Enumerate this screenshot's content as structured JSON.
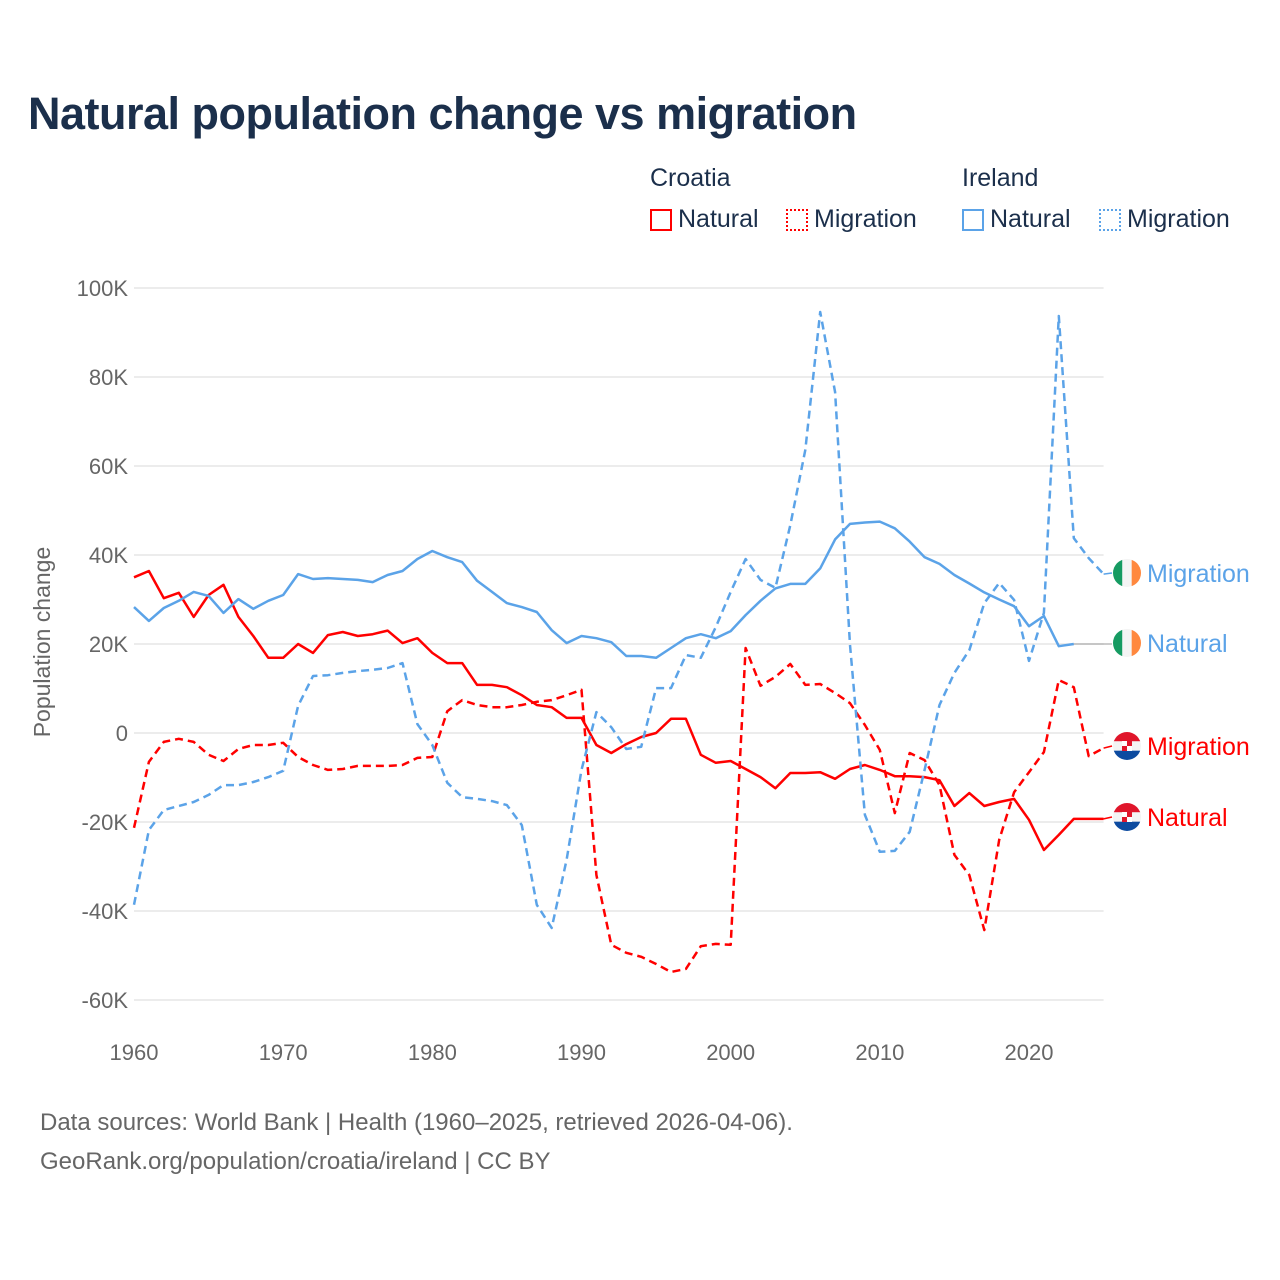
{
  "title": "Natural population change vs migration",
  "legend": {
    "groups": [
      {
        "name": "Croatia",
        "items": [
          {
            "label": "Natural",
            "style": "solid",
            "color": "#ff0000"
          },
          {
            "label": "Migration",
            "style": "dotted",
            "color": "#ff0000"
          }
        ]
      },
      {
        "name": "Ireland",
        "items": [
          {
            "label": "Natural",
            "style": "solid",
            "color": "#5ba3e8"
          },
          {
            "label": "Migration",
            "style": "dotted",
            "color": "#5ba3e8"
          }
        ]
      }
    ]
  },
  "footer": {
    "line1": "Data sources: World Bank | Health (1960–2025, retrieved 2026-04-06).",
    "line2": "GeoRank.org/population/croatia/ireland | CC BY"
  },
  "chart_data": {
    "type": "line",
    "title": "Natural population change vs migration",
    "ylabel": "Population change",
    "xlabel": "",
    "xlim": [
      1960,
      2025
    ],
    "ylim": [
      -60000,
      100000
    ],
    "x_ticks": [
      1960,
      1970,
      1980,
      1990,
      2000,
      2010,
      2020
    ],
    "x_tick_labels": [
      "1960",
      "1970",
      "1980",
      "1990",
      "2000",
      "2010",
      "2020"
    ],
    "y_ticks": [
      100000,
      80000,
      60000,
      40000,
      20000,
      0,
      -20000,
      -40000,
      -60000
    ],
    "y_tick_labels": [
      "100K",
      "80K",
      "60K",
      "40K",
      "20K",
      "0",
      "-20K",
      "-40K",
      "-60K"
    ],
    "grid": true,
    "legend_position": "top-right",
    "x_start": 1960,
    "series": [
      {
        "name": "Croatia Natural",
        "label": "Natural",
        "country": "Croatia",
        "color": "#ff0000",
        "dashed": false,
        "values": [
          35.0,
          36.4,
          30.3,
          31.5,
          26.1,
          31.0,
          33.3,
          26.1,
          21.8,
          16.9,
          16.9,
          20.0,
          18.0,
          22.0,
          22.7,
          21.8,
          22.2,
          23.0,
          20.2,
          21.3,
          18.0,
          15.7,
          15.7,
          10.8,
          10.8,
          10.3,
          8.5,
          6.3,
          5.8,
          3.4,
          3.4,
          -2.7,
          -4.5,
          -2.5,
          -0.9,
          0.0,
          3.2,
          3.2,
          -4.9,
          -6.7,
          -6.3,
          -8.1,
          -9.9,
          -12.4,
          -9.0,
          -9.0,
          -8.8,
          -10.3,
          -8.1,
          -7.2,
          -8.3,
          -9.7,
          -9.7,
          -9.9,
          -10.6,
          -16.4,
          -13.5,
          -16.4,
          -15.5,
          -14.8,
          -19.5,
          -26.3,
          -22.9,
          -19.3,
          -19.3,
          -19.3
        ]
      },
      {
        "name": "Croatia Migration",
        "label": "Migration",
        "country": "Croatia",
        "color": "#ff0000",
        "dashed": true,
        "values": [
          -21.3,
          -6.5,
          -2.0,
          -1.3,
          -2.0,
          -4.9,
          -6.3,
          -3.6,
          -2.7,
          -2.7,
          -2.2,
          -5.4,
          -7.2,
          -8.3,
          -8.1,
          -7.4,
          -7.4,
          -7.4,
          -7.2,
          -5.6,
          -5.4,
          4.9,
          7.4,
          6.3,
          5.8,
          5.8,
          6.3,
          7.0,
          7.4,
          8.5,
          9.7,
          -31.9,
          -47.6,
          -49.4,
          -50.3,
          -51.9,
          -53.7,
          -53.0,
          -47.9,
          -47.4,
          -47.6,
          19.1,
          10.6,
          12.6,
          15.5,
          10.8,
          11.0,
          9.0,
          6.7,
          1.8,
          -3.8,
          -18.0,
          -4.5,
          -6.1,
          -11.7,
          -27.4,
          -31.9,
          -44.3,
          -24.0,
          -13.3,
          -8.8,
          -4.3,
          11.9,
          10.3,
          -5.2,
          -3.4
        ]
      },
      {
        "name": "Ireland Natural",
        "label": "Natural",
        "country": "Ireland",
        "color": "#5ba3e8",
        "dashed": false,
        "values": [
          28.3,
          25.2,
          28.1,
          29.7,
          31.7,
          30.8,
          27.0,
          30.1,
          27.9,
          29.7,
          31.0,
          35.7,
          34.6,
          34.8,
          34.6,
          34.4,
          33.9,
          35.5,
          36.4,
          39.1,
          40.9,
          39.5,
          38.4,
          34.2,
          31.7,
          29.2,
          28.3,
          27.2,
          23.1,
          20.2,
          21.8,
          21.3,
          20.4,
          17.3,
          17.3,
          16.9,
          19.1,
          21.3,
          22.2,
          21.3,
          22.9,
          26.5,
          29.7,
          32.5,
          33.5,
          33.5,
          37.0,
          43.5,
          47.0,
          47.3,
          47.5,
          46.0,
          43.0,
          39.5,
          38.0,
          35.5,
          33.6,
          31.6,
          30.0,
          28.5,
          24.0,
          26.3,
          19.5,
          20.0,
          null,
          null
        ]
      },
      {
        "name": "Ireland Migration",
        "label": "Migration",
        "country": "Ireland",
        "color": "#5ba3e8",
        "dashed": true,
        "values": [
          -38.6,
          -21.8,
          -17.3,
          -16.4,
          -15.5,
          -13.9,
          -11.7,
          -11.7,
          -11.0,
          -9.9,
          -8.5,
          6.1,
          12.8,
          13.0,
          13.5,
          13.9,
          14.2,
          14.6,
          15.7,
          2.0,
          -2.7,
          -11.2,
          -14.4,
          -14.8,
          -15.3,
          -16.2,
          -20.7,
          -38.6,
          -43.8,
          -28.5,
          -8.3,
          4.7,
          1.3,
          -3.6,
          -3.1,
          10.1,
          10.1,
          17.5,
          16.9,
          23.8,
          31.7,
          39.1,
          34.4,
          32.6,
          46.7,
          63.6,
          94.6,
          76.6,
          19.8,
          -18.4,
          -26.7,
          -26.5,
          -22.2,
          -8.3,
          6.3,
          13.5,
          18.6,
          29.2,
          33.7,
          29.9,
          16.2,
          27.0,
          93.7,
          43.8,
          39.3,
          35.7
        ]
      }
    ],
    "values_unit": "thousands",
    "end_labels": [
      {
        "series": "Ireland Migration",
        "text": "Migration",
        "flag": "ireland-flag-icon"
      },
      {
        "series": "Ireland Natural",
        "text": "Natural",
        "flag": "ireland-flag-icon"
      },
      {
        "series": "Croatia Migration",
        "text": "Migration",
        "flag": "croatia-flag-icon"
      },
      {
        "series": "Croatia Natural",
        "text": "Natural",
        "flag": "croatia-flag-icon"
      }
    ]
  }
}
